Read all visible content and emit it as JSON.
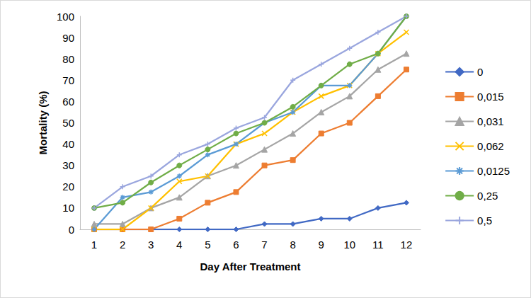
{
  "chart_data": {
    "type": "line",
    "x_label": "Day After Treatment",
    "y_label": "Mortality (%)",
    "categories": [
      1,
      2,
      3,
      4,
      5,
      6,
      7,
      8,
      9,
      10,
      11,
      12
    ],
    "ylim": [
      0,
      100
    ],
    "yticks": [
      0,
      10,
      20,
      30,
      40,
      50,
      60,
      70,
      80,
      90,
      100
    ],
    "grid": false,
    "legend": "right",
    "series": [
      {
        "name": "0",
        "color": "#4169c4",
        "marker": "diamond",
        "values": [
          0,
          0,
          0,
          0,
          0,
          0,
          2.5,
          2.5,
          5,
          5,
          10,
          12.5
        ]
      },
      {
        "name": "0,015",
        "color": "#ed7d31",
        "marker": "square",
        "values": [
          0,
          0,
          0,
          5,
          12.5,
          17.5,
          30,
          32.5,
          45,
          50,
          62.5,
          75
        ]
      },
      {
        "name": "0,031",
        "color": "#a5a5a5",
        "marker": "triangle",
        "values": [
          2.5,
          2.5,
          10,
          15,
          25,
          30,
          37.5,
          45,
          55,
          62.5,
          75,
          82.5
        ]
      },
      {
        "name": "0,062",
        "color": "#ffc000",
        "marker": "x",
        "values": [
          0,
          0,
          10,
          22.5,
          25,
          40,
          45,
          55,
          62.5,
          67.5,
          82.5,
          92.5
        ]
      },
      {
        "name": "0,0125",
        "color": "#5b9bd5",
        "marker": "asterisk",
        "values": [
          0,
          15,
          17.5,
          25,
          35,
          40,
          50,
          55,
          67.5,
          67.5,
          82.5,
          100
        ]
      },
      {
        "name": "0,25",
        "color": "#70ad47",
        "marker": "circle",
        "values": [
          10,
          12.5,
          22,
          30,
          37.5,
          45,
          50,
          57.5,
          67.5,
          77.5,
          82.5,
          100
        ]
      },
      {
        "name": "0,5",
        "color": "#9aa6de",
        "marker": "plus",
        "values": [
          10,
          20,
          25,
          35,
          40,
          47.5,
          52.5,
          70,
          77.5,
          85,
          92.5,
          100
        ]
      }
    ]
  }
}
